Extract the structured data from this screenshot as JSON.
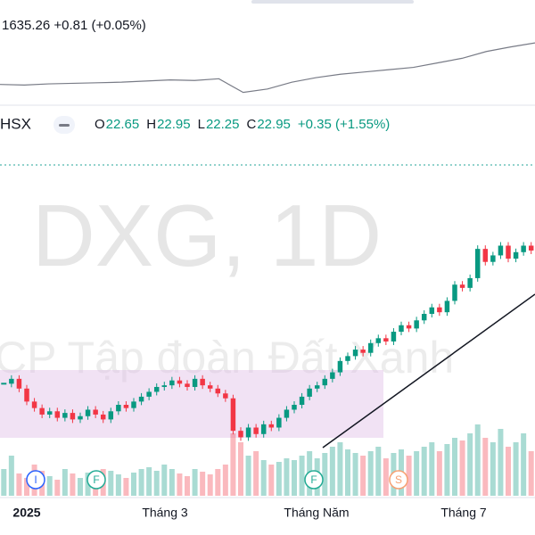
{
  "header": {
    "index_quote": "1635.26  +0.81 (+0.05%)"
  },
  "index_chart": {
    "values": [
      1270,
      1265,
      1275,
      1280,
      1285,
      1290,
      1300,
      1310,
      1305,
      1320,
      1200,
      1230,
      1290,
      1330,
      1360,
      1380,
      1400,
      1420,
      1460,
      1500,
      1560,
      1600,
      1635.26
    ],
    "ylim": [
      1150,
      1660
    ]
  },
  "symbol_bar": {
    "exchange": "HSX",
    "ohlc": [
      {
        "label": "O",
        "value": 22.65
      },
      {
        "label": "H",
        "value": 22.95
      },
      {
        "label": "L",
        "value": 22.25
      },
      {
        "label": "C",
        "value": 22.95
      }
    ],
    "change": "+0.35 (+1.55%)"
  },
  "watermark": {
    "symbol": "DXG, 1D",
    "company": "CP Tập đoàn Đất Xanh"
  },
  "chart_data": {
    "type": "candlestick",
    "closes": [
      16.1,
      16.4,
      15.8,
      15.0,
      14.6,
      14.2,
      14.4,
      14.0,
      14.3,
      13.9,
      14.1,
      14.5,
      14.2,
      13.9,
      14.4,
      14.8,
      14.6,
      15.0,
      15.3,
      15.6,
      15.9,
      16.0,
      16.3,
      16.1,
      15.9,
      16.4,
      16.0,
      15.8,
      15.5,
      15.2,
      13.2,
      12.8,
      13.4,
      13.0,
      13.6,
      13.4,
      14.0,
      14.5,
      14.8,
      15.3,
      15.8,
      16.0,
      16.4,
      16.8,
      17.5,
      17.8,
      18.2,
      18.0,
      18.6,
      18.9,
      18.7,
      19.3,
      19.7,
      19.5,
      20.0,
      20.4,
      20.8,
      20.5,
      21.2,
      22.2,
      22.0,
      22.6,
      24.4,
      23.6,
      24.0,
      24.6,
      23.8,
      24.2,
      24.6,
      24.3
    ],
    "volumes": [
      30,
      45,
      25,
      20,
      35,
      28,
      22,
      18,
      30,
      25,
      20,
      26,
      22,
      30,
      28,
      24,
      20,
      26,
      30,
      32,
      28,
      35,
      30,
      25,
      22,
      30,
      27,
      24,
      30,
      35,
      70,
      60,
      45,
      50,
      40,
      35,
      38,
      42,
      40,
      45,
      50,
      42,
      48,
      55,
      60,
      52,
      48,
      45,
      50,
      55,
      42,
      48,
      52,
      45,
      50,
      55,
      60,
      50,
      58,
      65,
      62,
      70,
      80,
      65,
      60,
      75,
      55,
      60,
      70,
      50
    ],
    "ylim": [
      12,
      26
    ],
    "up_color": "#089981",
    "down_color": "#f23645",
    "x_labels": [
      "2025",
      "Tháng 3",
      "Tháng Năm",
      "Tháng 7"
    ],
    "events": [
      "I",
      "F",
      "F",
      "S"
    ]
  }
}
